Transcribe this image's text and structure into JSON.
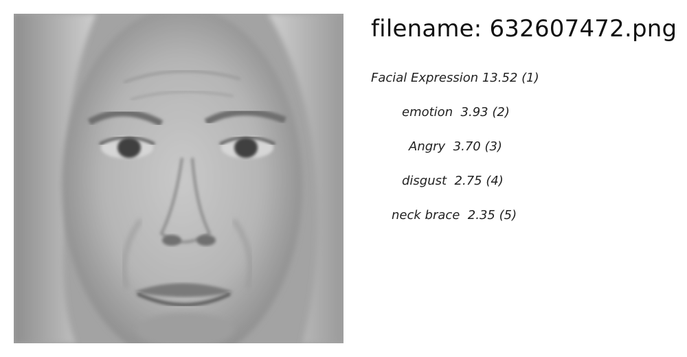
{
  "filename_line": "filename: 632607472.png",
  "predictions": [
    {
      "text": "Facial Expression 13.52 (1)",
      "label": "Facial Expression",
      "score": 13.52,
      "rank": 1
    },
    {
      "text": "emotion  3.93 (2)",
      "label": "emotion",
      "score": 3.93,
      "rank": 2
    },
    {
      "text": "Angry  3.70 (3)",
      "label": "Angry",
      "score": 3.7,
      "rank": 3
    },
    {
      "text": "disgust  2.75 (4)",
      "label": "disgust",
      "score": 2.75,
      "rank": 4
    },
    {
      "text": "neck brace  2.35 (5)",
      "label": "neck brace",
      "score": 2.35,
      "rank": 5
    }
  ]
}
